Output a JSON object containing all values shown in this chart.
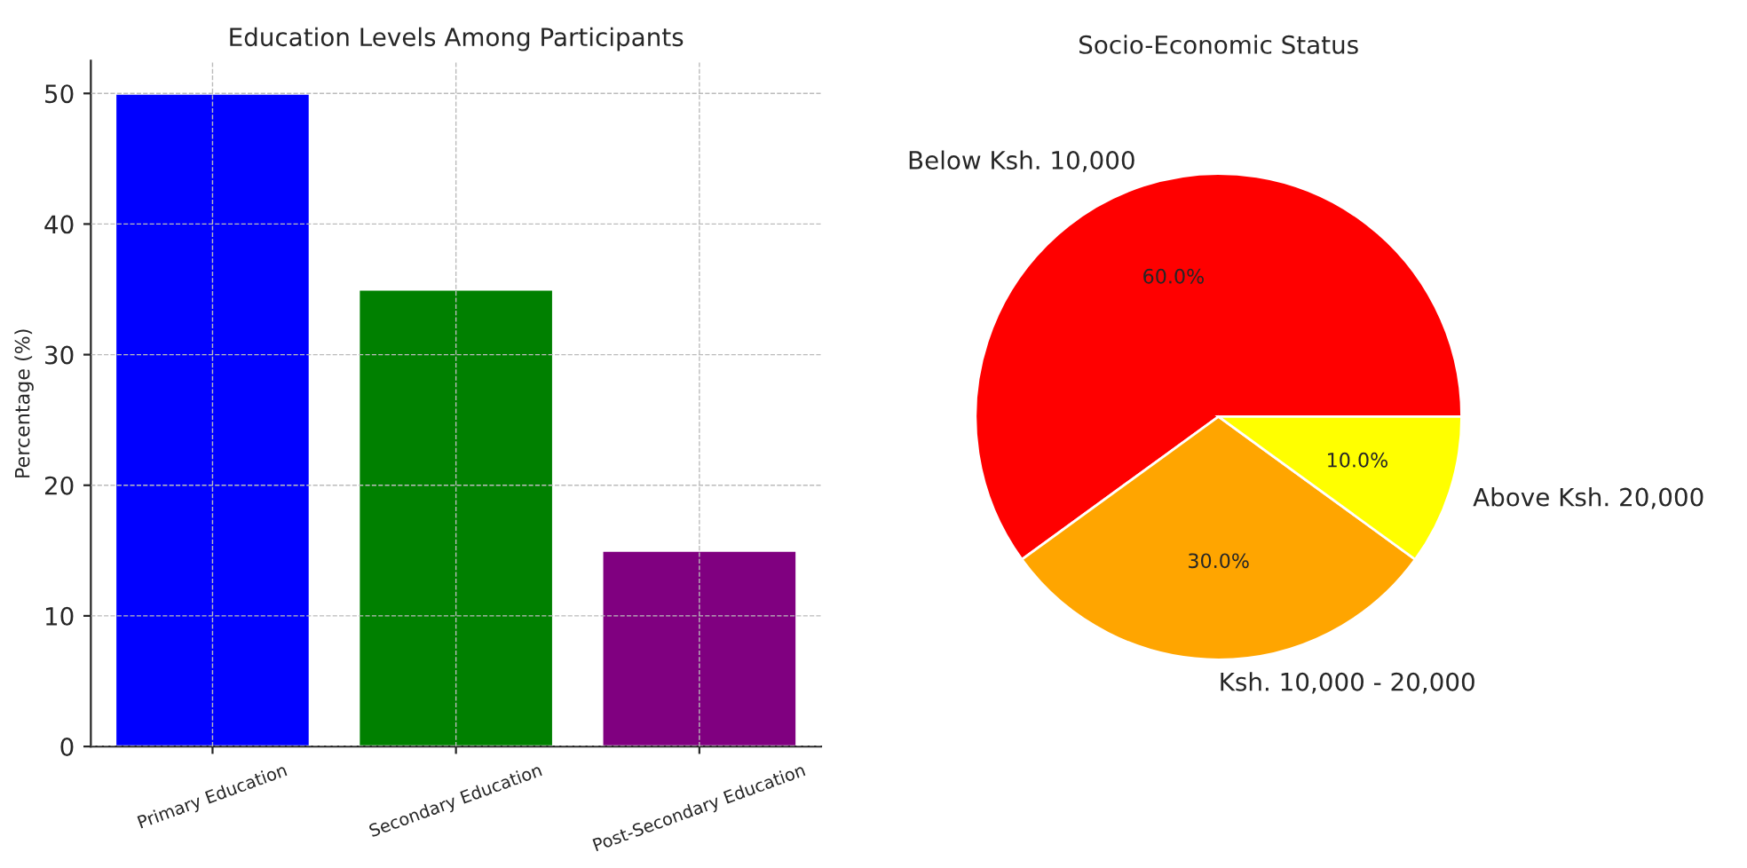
{
  "chart_data": [
    {
      "type": "bar",
      "title": "Education Levels Among Participants",
      "ylabel": "Percentage (%)",
      "categories": [
        "Primary Education",
        "Secondary Education",
        "Post-Secondary Education"
      ],
      "values": [
        50,
        35,
        15
      ],
      "colors": [
        "#0000ff",
        "#008000",
        "#800080"
      ],
      "ylim": [
        0,
        52.5
      ],
      "yticks": [
        0,
        10,
        20,
        30,
        40,
        50
      ],
      "grid": true
    },
    {
      "type": "pie",
      "title": "Socio-Economic Status",
      "categories": [
        "Below Ksh. 10,000",
        "Ksh. 10,000 - 20,000",
        "Above Ksh. 20,000"
      ],
      "values": [
        60,
        30,
        10
      ],
      "colors": [
        "#ff0000",
        "#ffa500",
        "#ffff00"
      ],
      "value_labels": [
        "60.0%",
        "30.0%",
        "10.0%"
      ]
    }
  ]
}
